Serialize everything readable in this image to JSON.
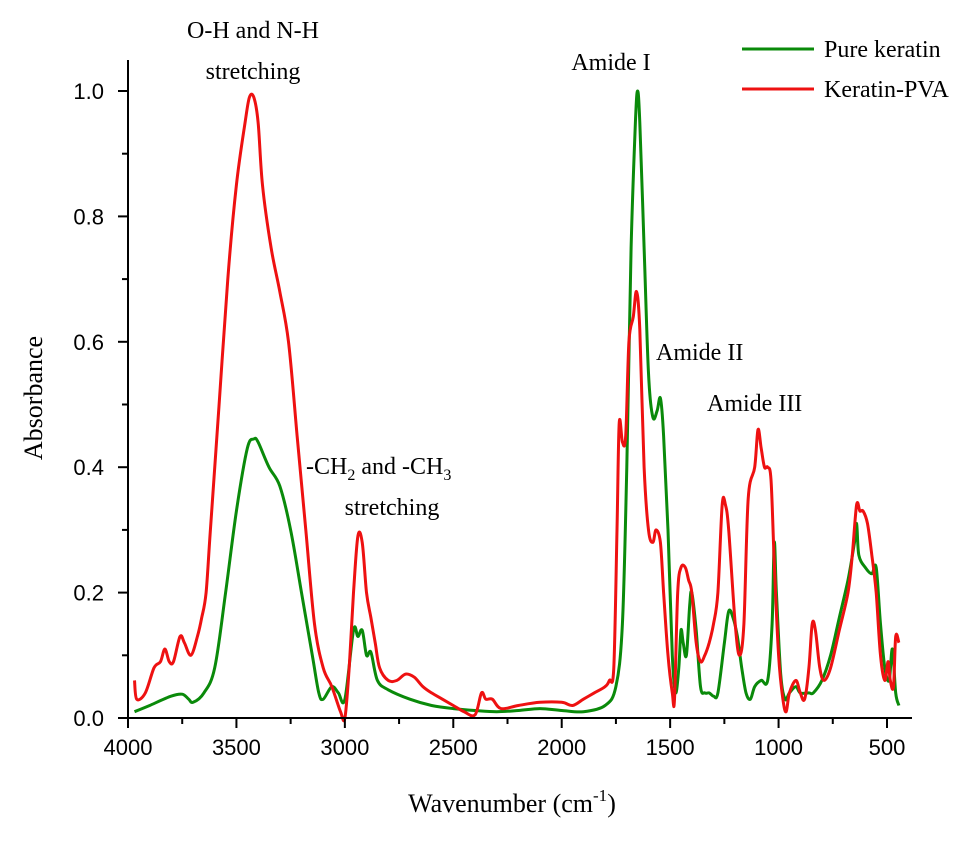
{
  "chart_data": {
    "type": "line",
    "title": "",
    "xlabel": "Wavenumber (cm",
    "xlabel_sup": "-1",
    "xlabel_end": ")",
    "ylabel": "Absorbance",
    "xlim": [
      4000,
      440
    ],
    "ylim": [
      0.0,
      1.0
    ],
    "x_reversed": true,
    "grid": false,
    "legend_placement": "top-right",
    "x_ticks": [
      "4000",
      "3500",
      "3000",
      "2500",
      "2000",
      "1500",
      "1000",
      "500"
    ],
    "y_ticks": [
      "0.0",
      "0.2",
      "0.4",
      "0.6",
      "0.8",
      "1.0"
    ],
    "annotations": {
      "oh_nh_line1": "O-H and N-H",
      "oh_nh_line2": "stretching",
      "amide1": "Amide I",
      "amide2": "Amide II",
      "amide3": "Amide III",
      "ch_a": "-CH",
      "ch_sub1": "2",
      "ch_b": " and -CH",
      "ch_sub2": "3",
      "ch_line2": "stretching"
    },
    "series": [
      {
        "name": "Pure keratin",
        "color": "#0a8a0a",
        "x": [
          3970,
          3900,
          3800,
          3750,
          3720,
          3700,
          3650,
          3600,
          3550,
          3500,
          3450,
          3420,
          3400,
          3350,
          3300,
          3250,
          3200,
          3150,
          3120,
          3100,
          3060,
          3030,
          3000,
          2960,
          2940,
          2920,
          2900,
          2880,
          2850,
          2800,
          2700,
          2600,
          2500,
          2400,
          2300,
          2200,
          2100,
          2000,
          1900,
          1800,
          1750,
          1720,
          1700,
          1680,
          1660,
          1650,
          1640,
          1620,
          1600,
          1580,
          1560,
          1545,
          1530,
          1510,
          1490,
          1475,
          1460,
          1450,
          1440,
          1425,
          1410,
          1400,
          1380,
          1360,
          1340,
          1320,
          1300,
          1280,
          1250,
          1230,
          1210,
          1190,
          1170,
          1150,
          1130,
          1110,
          1080,
          1050,
          1030,
          1020,
          1010,
          990,
          970,
          950,
          920,
          900,
          860,
          840,
          800,
          760,
          720,
          680,
          650,
          640,
          630,
          600,
          570,
          550,
          530,
          510,
          490,
          475,
          460,
          445
        ],
        "y": [
          0.01,
          0.02,
          0.035,
          0.038,
          0.03,
          0.025,
          0.04,
          0.08,
          0.2,
          0.33,
          0.43,
          0.445,
          0.44,
          0.4,
          0.37,
          0.3,
          0.2,
          0.1,
          0.04,
          0.03,
          0.05,
          0.04,
          0.03,
          0.14,
          0.13,
          0.14,
          0.1,
          0.105,
          0.06,
          0.045,
          0.03,
          0.02,
          0.015,
          0.012,
          0.01,
          0.012,
          0.015,
          0.012,
          0.01,
          0.02,
          0.05,
          0.15,
          0.4,
          0.75,
          0.95,
          1.0,
          0.95,
          0.75,
          0.55,
          0.48,
          0.49,
          0.51,
          0.45,
          0.3,
          0.1,
          0.04,
          0.08,
          0.14,
          0.12,
          0.1,
          0.18,
          0.2,
          0.14,
          0.05,
          0.04,
          0.04,
          0.035,
          0.04,
          0.12,
          0.17,
          0.16,
          0.13,
          0.08,
          0.04,
          0.03,
          0.05,
          0.06,
          0.06,
          0.15,
          0.28,
          0.2,
          0.07,
          0.03,
          0.04,
          0.05,
          0.04,
          0.04,
          0.04,
          0.06,
          0.1,
          0.16,
          0.22,
          0.28,
          0.31,
          0.26,
          0.24,
          0.23,
          0.24,
          0.15,
          0.08,
          0.06,
          0.11,
          0.04,
          0.02
        ]
      },
      {
        "name": "Keratin-PVA",
        "color": "#ee1111",
        "x": [
          3970,
          3960,
          3920,
          3880,
          3850,
          3830,
          3810,
          3790,
          3760,
          3740,
          3710,
          3680,
          3660,
          3640,
          3620,
          3580,
          3540,
          3500,
          3460,
          3440,
          3420,
          3400,
          3380,
          3340,
          3300,
          3260,
          3220,
          3180,
          3140,
          3100,
          3060,
          3020,
          3000,
          2980,
          2960,
          2940,
          2920,
          2900,
          2880,
          2860,
          2840,
          2800,
          2760,
          2720,
          2680,
          2640,
          2600,
          2550,
          2500,
          2450,
          2400,
          2370,
          2350,
          2320,
          2280,
          2200,
          2100,
          2000,
          1950,
          1900,
          1850,
          1800,
          1780,
          1760,
          1745,
          1735,
          1720,
          1705,
          1690,
          1670,
          1655,
          1640,
          1620,
          1600,
          1580,
          1565,
          1545,
          1530,
          1510,
          1490,
          1480,
          1465,
          1450,
          1430,
          1415,
          1400,
          1380,
          1360,
          1340,
          1320,
          1300,
          1280,
          1260,
          1245,
          1230,
          1200,
          1180,
          1160,
          1140,
          1110,
          1095,
          1080,
          1065,
          1050,
          1035,
          1020,
          1000,
          980,
          965,
          950,
          920,
          900,
          880,
          860,
          845,
          830,
          810,
          790,
          760,
          720,
          680,
          660,
          640,
          625,
          610,
          590,
          570,
          550,
          530,
          510,
          495,
          485,
          470,
          460,
          445
        ],
        "y": [
          0.06,
          0.03,
          0.04,
          0.08,
          0.09,
          0.11,
          0.09,
          0.09,
          0.13,
          0.12,
          0.1,
          0.13,
          0.16,
          0.2,
          0.3,
          0.5,
          0.7,
          0.85,
          0.95,
          0.99,
          0.99,
          0.95,
          0.85,
          0.75,
          0.68,
          0.6,
          0.45,
          0.3,
          0.15,
          0.08,
          0.05,
          0.01,
          0.0,
          0.08,
          0.2,
          0.29,
          0.28,
          0.2,
          0.16,
          0.12,
          0.08,
          0.06,
          0.06,
          0.07,
          0.065,
          0.05,
          0.04,
          0.03,
          0.02,
          0.01,
          0.005,
          0.04,
          0.03,
          0.03,
          0.015,
          0.02,
          0.025,
          0.025,
          0.02,
          0.03,
          0.04,
          0.05,
          0.06,
          0.08,
          0.3,
          0.47,
          0.44,
          0.45,
          0.6,
          0.64,
          0.68,
          0.62,
          0.4,
          0.3,
          0.28,
          0.3,
          0.28,
          0.2,
          0.1,
          0.04,
          0.03,
          0.2,
          0.24,
          0.24,
          0.22,
          0.2,
          0.12,
          0.09,
          0.1,
          0.12,
          0.15,
          0.2,
          0.34,
          0.34,
          0.3,
          0.15,
          0.1,
          0.15,
          0.35,
          0.4,
          0.46,
          0.43,
          0.4,
          0.4,
          0.38,
          0.25,
          0.1,
          0.03,
          0.01,
          0.04,
          0.06,
          0.04,
          0.03,
          0.08,
          0.15,
          0.14,
          0.08,
          0.06,
          0.08,
          0.14,
          0.2,
          0.26,
          0.34,
          0.33,
          0.33,
          0.31,
          0.26,
          0.2,
          0.1,
          0.06,
          0.09,
          0.06,
          0.05,
          0.13,
          0.12
        ]
      }
    ]
  }
}
